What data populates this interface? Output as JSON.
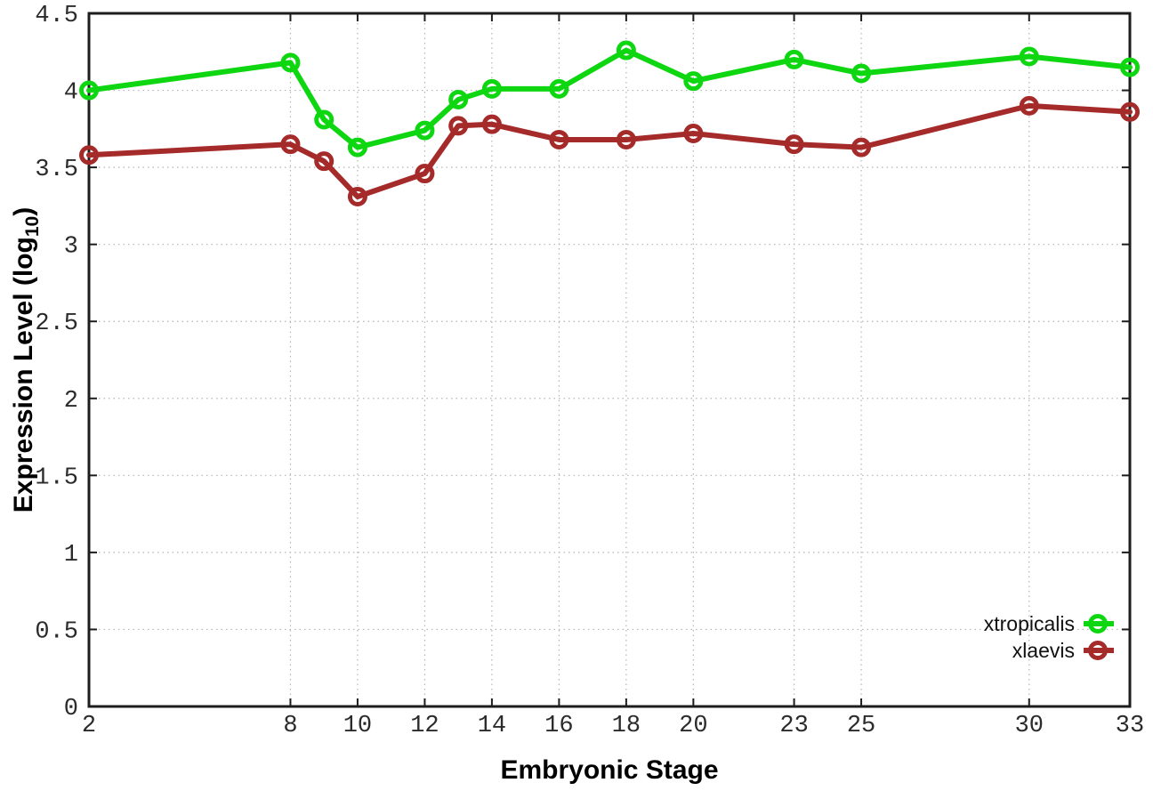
{
  "figure": {
    "background": "#ffffff",
    "border_color": "#1d1d1d",
    "grid_color": "#b3b3bd",
    "tick_text_color": "#2b2b2b",
    "label_text_color": "#000000"
  },
  "chart_data": {
    "type": "line",
    "title": "",
    "xlabel": "Embryonic Stage",
    "ylabel": {
      "prefix": "Expression Level (log",
      "sub": "10",
      "suffix": ")"
    },
    "x": [
      2,
      8,
      9,
      10,
      12,
      13,
      14,
      16,
      18,
      20,
      23,
      25,
      30,
      33
    ],
    "series": [
      {
        "name": "xtropicalis",
        "color": "#0ed712",
        "marker": "open-circle",
        "values": [
          4.0,
          4.18,
          3.81,
          3.63,
          3.74,
          3.94,
          4.01,
          4.01,
          4.26,
          4.06,
          4.2,
          4.11,
          4.22,
          4.15
        ]
      },
      {
        "name": "xlaevis",
        "color": "#a52a2a",
        "marker": "open-circle",
        "values": [
          3.58,
          3.65,
          3.54,
          3.31,
          3.46,
          3.77,
          3.78,
          3.68,
          3.68,
          3.72,
          3.65,
          3.63,
          3.9,
          3.86
        ]
      }
    ],
    "xlim": [
      2,
      33
    ],
    "ylim": [
      0,
      4.5
    ],
    "x_ticks": [
      2,
      8,
      10,
      12,
      14,
      16,
      18,
      20,
      23,
      25,
      30,
      33
    ],
    "x_tick_labels": [
      "2",
      "8",
      "10",
      "12",
      "14",
      "16",
      "18",
      "20",
      "23",
      "25",
      "30",
      "33"
    ],
    "y_ticks": [
      0,
      0.5,
      1,
      1.5,
      2,
      2.5,
      3,
      3.5,
      4,
      4.5
    ],
    "y_tick_labels": [
      "0",
      "0.5",
      "1",
      "1.5",
      "2",
      "2.5",
      "3",
      "3.5",
      "4",
      "4.5"
    ],
    "grid": true,
    "legend_position": "bottom-right"
  }
}
